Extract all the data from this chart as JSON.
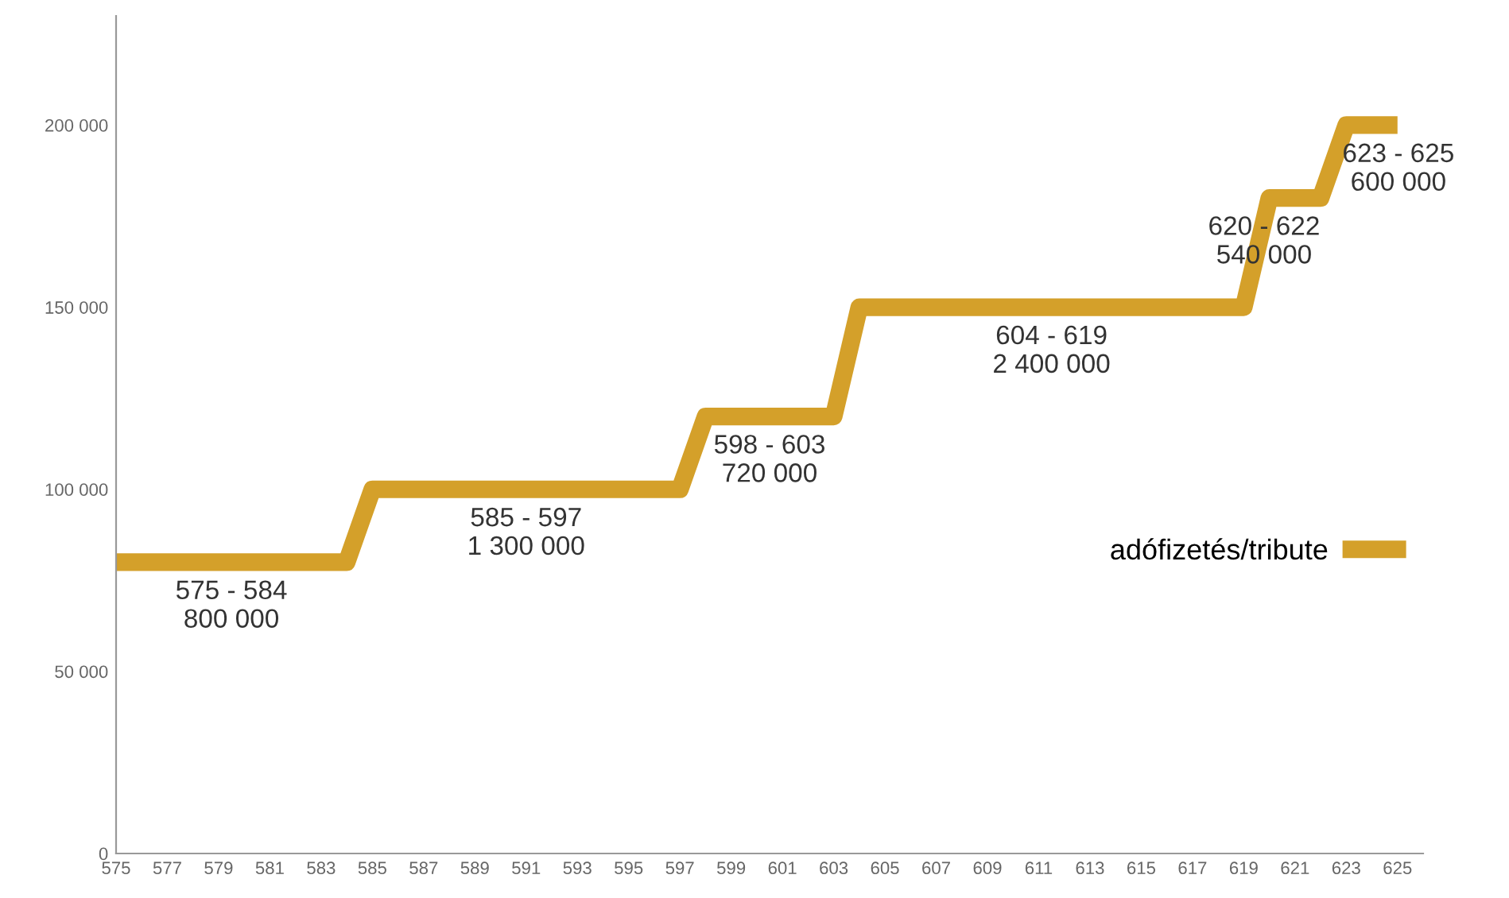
{
  "chart_data": {
    "type": "line",
    "x": [
      575,
      576,
      577,
      578,
      579,
      580,
      581,
      582,
      583,
      584,
      585,
      586,
      587,
      588,
      589,
      590,
      591,
      592,
      593,
      594,
      595,
      596,
      597,
      598,
      599,
      600,
      601,
      602,
      603,
      604,
      605,
      606,
      607,
      608,
      609,
      610,
      611,
      612,
      613,
      614,
      615,
      616,
      617,
      618,
      619,
      620,
      621,
      622,
      623,
      624,
      625
    ],
    "series": [
      {
        "name": "adófizetés/tribute",
        "color": "#d4a02a",
        "values": [
          80000,
          80000,
          80000,
          80000,
          80000,
          80000,
          80000,
          80000,
          80000,
          80000,
          100000,
          100000,
          100000,
          100000,
          100000,
          100000,
          100000,
          100000,
          100000,
          100000,
          100000,
          100000,
          100000,
          120000,
          120000,
          120000,
          120000,
          120000,
          120000,
          150000,
          150000,
          150000,
          150000,
          150000,
          150000,
          150000,
          150000,
          150000,
          150000,
          150000,
          150000,
          150000,
          150000,
          150000,
          150000,
          180000,
          180000,
          180000,
          200000,
          200000,
          200000
        ]
      }
    ],
    "xlim": [
      575,
      626
    ],
    "xticks": [
      575,
      577,
      579,
      581,
      583,
      585,
      587,
      589,
      591,
      593,
      595,
      597,
      599,
      601,
      603,
      605,
      607,
      609,
      611,
      613,
      615,
      617,
      619,
      621,
      623,
      625
    ],
    "ylim": [
      0,
      230000
    ],
    "yticks": [
      {
        "value": 0,
        "label": "0"
      },
      {
        "value": 50000,
        "label": "50 000"
      },
      {
        "value": 100000,
        "label": "100 000"
      },
      {
        "value": 150000,
        "label": "150 000"
      },
      {
        "value": 200000,
        "label": "200 000"
      }
    ],
    "grid": false,
    "legend": "right",
    "marker": "none",
    "line_style": "solid",
    "annotations": [
      "575 - 584\n800 000",
      "585 - 597\n1 300 000",
      "598 - 603\n720 000",
      "604 - 619\n2 400 000",
      "620 - 622\n540 000",
      "623 - 625\n600 000"
    ]
  }
}
